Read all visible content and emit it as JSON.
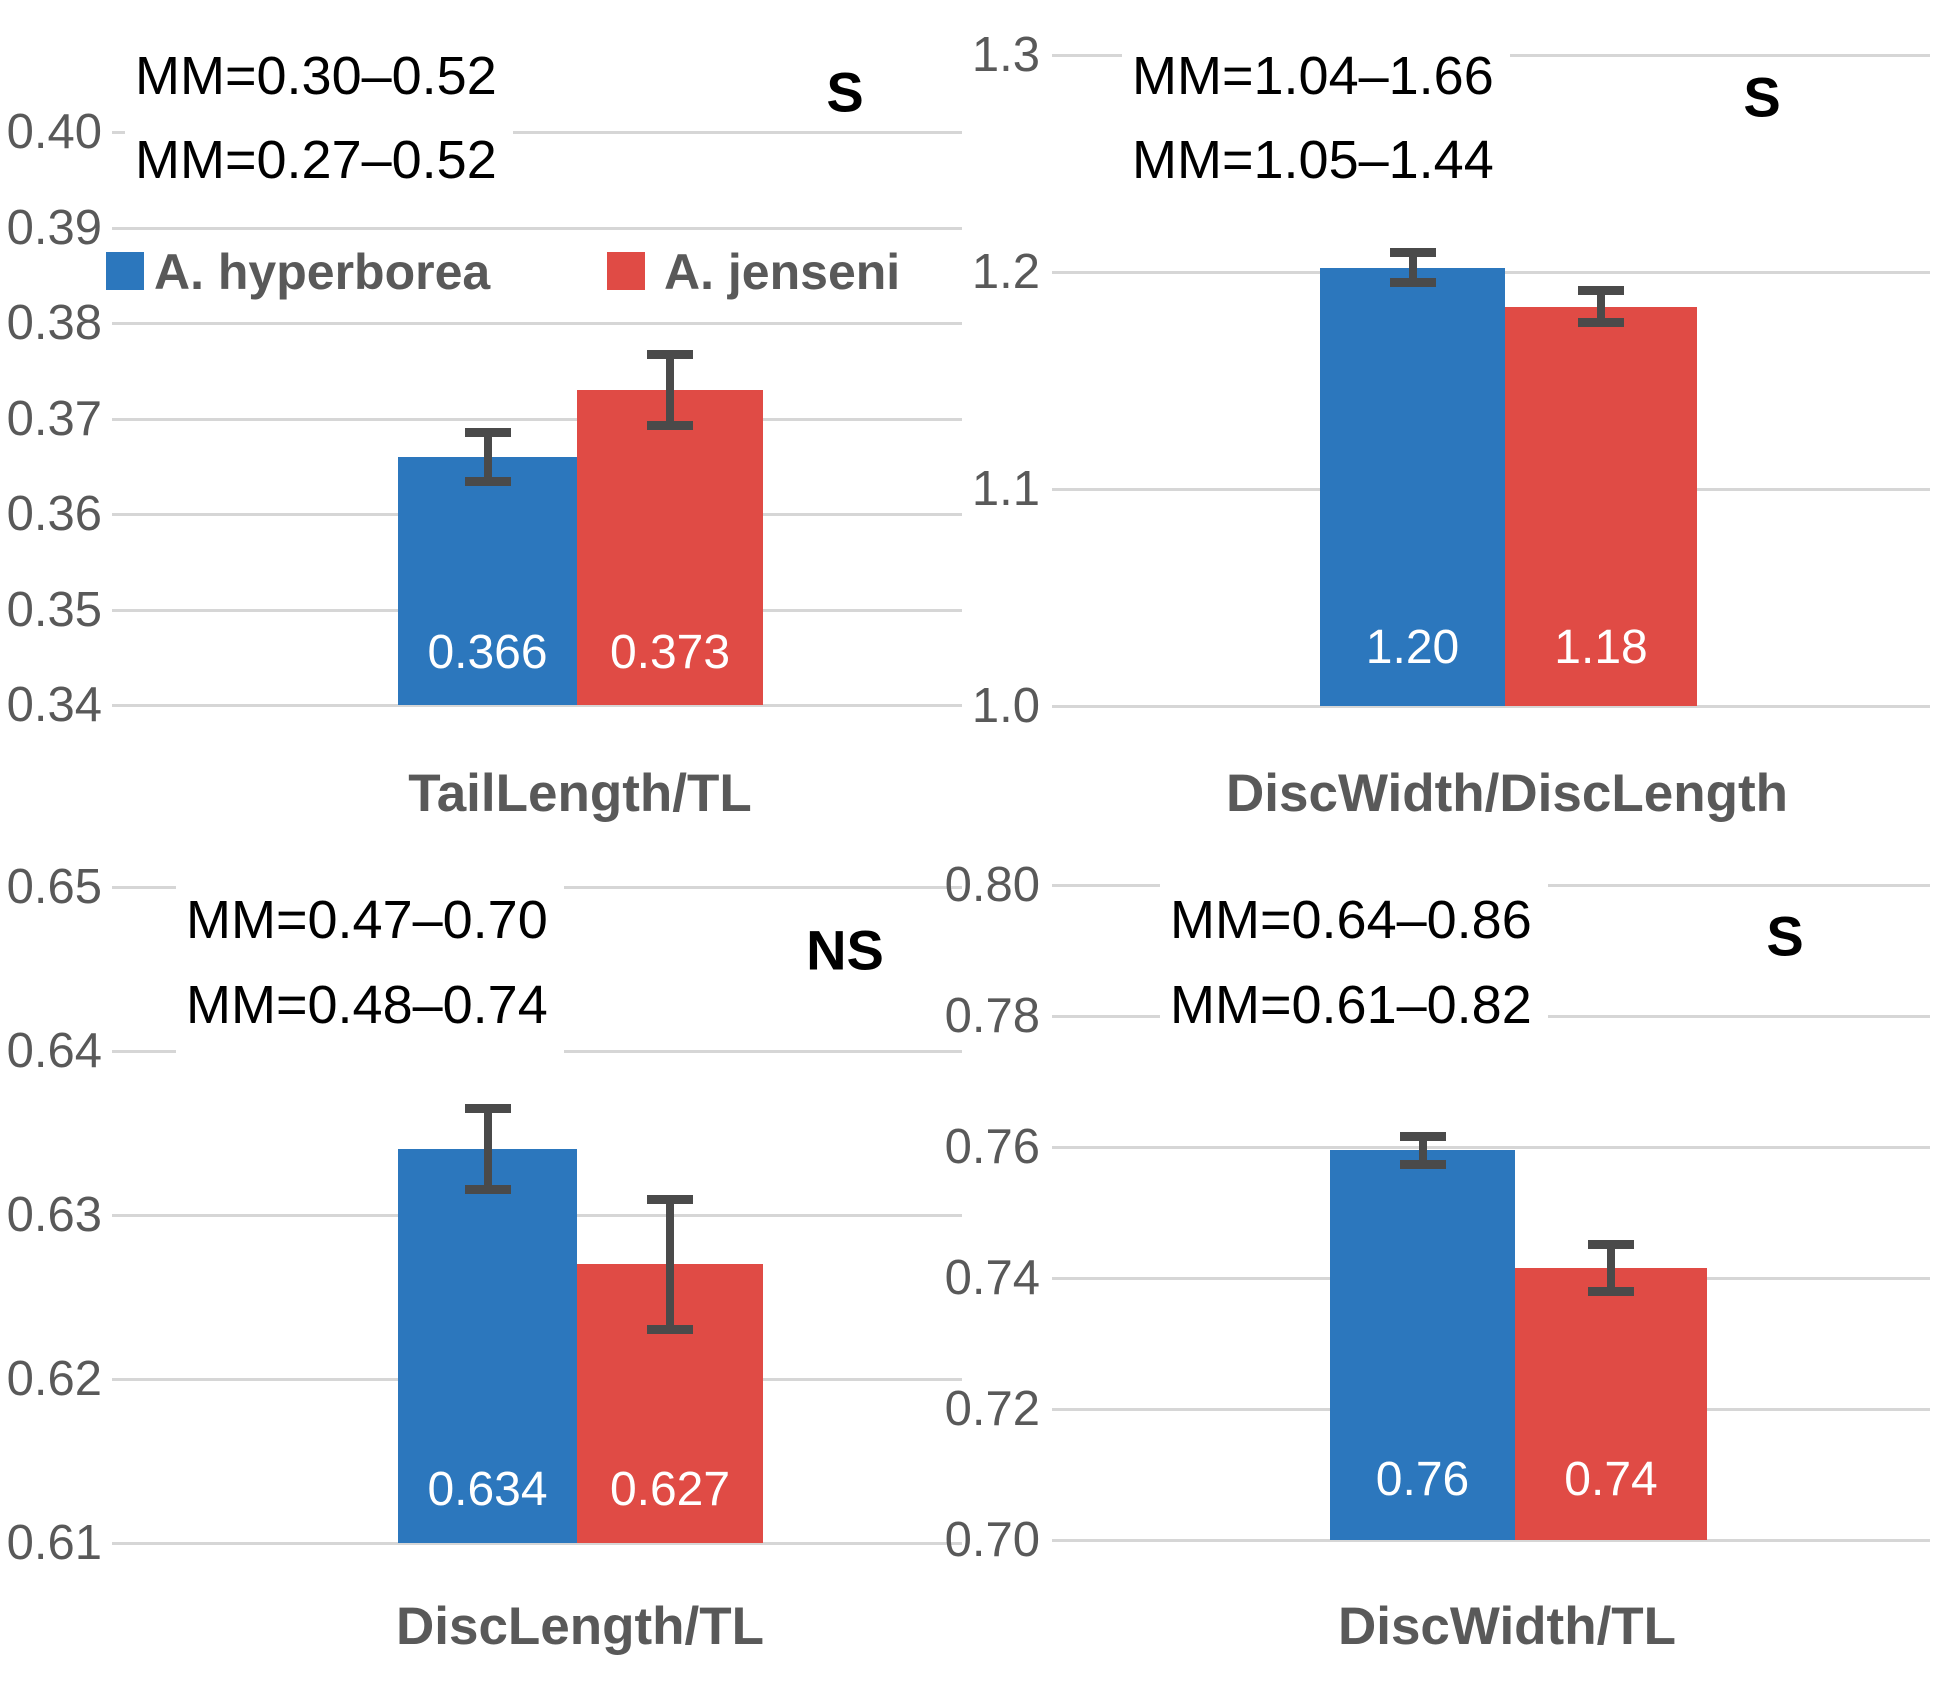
{
  "figure": {
    "colors": {
      "series_blue": "#2c77bd",
      "series_red": "#e04b45",
      "gridline": "#d6d6d6",
      "tick_text": "#595959",
      "axis_label_text": "#595959",
      "annotation_text": "#000000",
      "error_bar": "#4a4a4a",
      "data_label_text": "#ffffff"
    },
    "legend": {
      "items": [
        {
          "label": "A. hyperborea",
          "color_key": "series_blue",
          "swatch": "blue-square-icon"
        },
        {
          "label": "A. jenseni",
          "color_key": "series_red",
          "swatch": "red-square-icon"
        }
      ]
    }
  },
  "chart_data": [
    {
      "type": "bar",
      "xlabel": "TailLength/TL",
      "ylim": [
        0.34,
        0.4
      ],
      "grid": true,
      "legend_position": "inside-top-left",
      "has_legend": true,
      "yticks": [
        {
          "label": "0.40",
          "value": 0.4
        },
        {
          "label": "0.39",
          "value": 0.39
        },
        {
          "label": "0.38",
          "value": 0.38
        },
        {
          "label": "0.37",
          "value": 0.37
        },
        {
          "label": "0.36",
          "value": 0.36
        },
        {
          "label": "0.35",
          "value": 0.35
        },
        {
          "label": "0.34",
          "value": 0.34
        }
      ],
      "categories": [
        "A. hyperborea",
        "A. jenseni"
      ],
      "series": [
        {
          "name": "A. hyperborea",
          "value": 0.366,
          "draw_value": 0.366,
          "label": "0.366",
          "error": 0.0026
        },
        {
          "name": "A. jenseni",
          "value": 0.373,
          "draw_value": 0.373,
          "label": "0.373",
          "error": 0.0038
        }
      ],
      "annotations": {
        "mm_line1": "MM=0.30–0.52",
        "mm_line2": "MM=0.27–0.52",
        "significance": "S"
      }
    },
    {
      "type": "bar",
      "xlabel": "DiscWidth/DiscLength",
      "ylim": [
        1.0,
        1.3
      ],
      "grid": true,
      "has_legend": false,
      "yticks": [
        {
          "label": "1.3",
          "value": 1.3
        },
        {
          "label": "1.2",
          "value": 1.2
        },
        {
          "label": "1.1",
          "value": 1.1
        },
        {
          "label": "1.0",
          "value": 1.0
        }
      ],
      "categories": [
        "A. hyperborea",
        "A. jenseni"
      ],
      "series": [
        {
          "name": "A. hyperborea",
          "value": 1.2,
          "draw_value": 1.202,
          "label": "1.20",
          "error": 0.007
        },
        {
          "name": "A. jenseni",
          "value": 1.18,
          "draw_value": 1.184,
          "label": "1.18",
          "error": 0.0075
        }
      ],
      "annotations": {
        "mm_line1": "MM=1.04–1.66",
        "mm_line2": "MM=1.05–1.44",
        "significance": "S"
      }
    },
    {
      "type": "bar",
      "xlabel": "DiscLength/TL",
      "ylim": [
        0.61,
        0.65
      ],
      "grid": true,
      "has_legend": false,
      "yticks": [
        {
          "label": "0.65",
          "value": 0.65
        },
        {
          "label": "0.64",
          "value": 0.64
        },
        {
          "label": "0.63",
          "value": 0.63
        },
        {
          "label": "0.62",
          "value": 0.62
        },
        {
          "label": "0.61",
          "value": 0.61
        }
      ],
      "categories": [
        "A. hyperborea",
        "A. jenseni"
      ],
      "series": [
        {
          "name": "A. hyperborea",
          "value": 0.634,
          "draw_value": 0.634,
          "label": "0.634",
          "error": 0.0025
        },
        {
          "name": "A. jenseni",
          "value": 0.627,
          "draw_value": 0.627,
          "label": "0.627",
          "error": 0.004
        }
      ],
      "annotations": {
        "mm_line1": "MM=0.47–0.70",
        "mm_line2": "MM=0.48–0.74",
        "significance": "NS"
      }
    },
    {
      "type": "bar",
      "xlabel": "DiscWidth/TL",
      "ylim": [
        0.7,
        0.8
      ],
      "grid": true,
      "has_legend": false,
      "yticks": [
        {
          "label": "0.80",
          "value": 0.8
        },
        {
          "label": "0.78",
          "value": 0.78
        },
        {
          "label": "0.76",
          "value": 0.76
        },
        {
          "label": "0.74",
          "value": 0.74
        },
        {
          "label": "0.72",
          "value": 0.72
        },
        {
          "label": "0.70",
          "value": 0.7
        }
      ],
      "categories": [
        "A. hyperborea",
        "A. jenseni"
      ],
      "series": [
        {
          "name": "A. hyperborea",
          "value": 0.76,
          "draw_value": 0.7595,
          "label": "0.76",
          "error": 0.0022
        },
        {
          "name": "A. jenseni",
          "value": 0.74,
          "draw_value": 0.7415,
          "label": "0.74",
          "error": 0.0037
        }
      ],
      "annotations": {
        "mm_line1": "MM=0.64–0.86",
        "mm_line2": "MM=0.61–0.82",
        "significance": "S"
      }
    }
  ]
}
